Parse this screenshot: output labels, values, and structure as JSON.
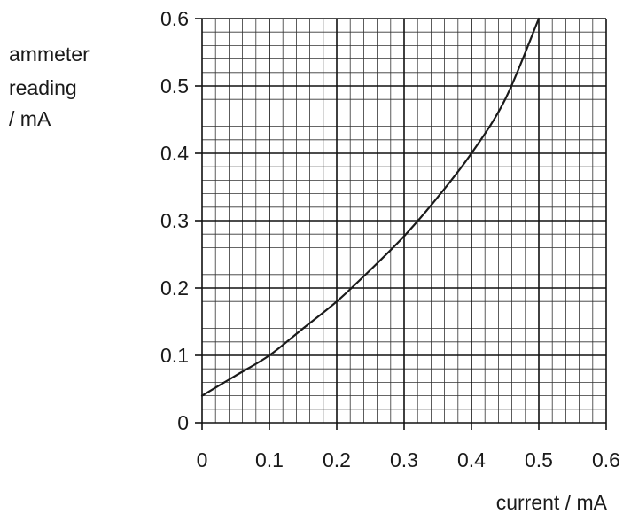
{
  "chart_data": {
    "type": "line",
    "title": "",
    "xlabel": "current / mA",
    "ylabel_lines": [
      "ammeter",
      "reading",
      "/ mA"
    ],
    "xlim": [
      0,
      0.6
    ],
    "ylim": [
      0,
      0.6
    ],
    "x_ticks": [
      "0",
      "0.1",
      "0.2",
      "0.3",
      "0.4",
      "0.5",
      "0.6"
    ],
    "y_ticks": [
      "0",
      "0.1",
      "0.2",
      "0.3",
      "0.4",
      "0.5",
      "0.6"
    ],
    "grid": true,
    "minor_grid_divisions": 5,
    "series": [
      {
        "x": [
          0,
          0.05,
          0.1,
          0.15,
          0.2,
          0.25,
          0.3,
          0.35,
          0.4,
          0.45,
          0.5
        ],
        "y": [
          0.04,
          0.07,
          0.1,
          0.14,
          0.18,
          0.227,
          0.277,
          0.335,
          0.4,
          0.48,
          0.6
        ],
        "color": "#1a1a1a"
      }
    ]
  }
}
